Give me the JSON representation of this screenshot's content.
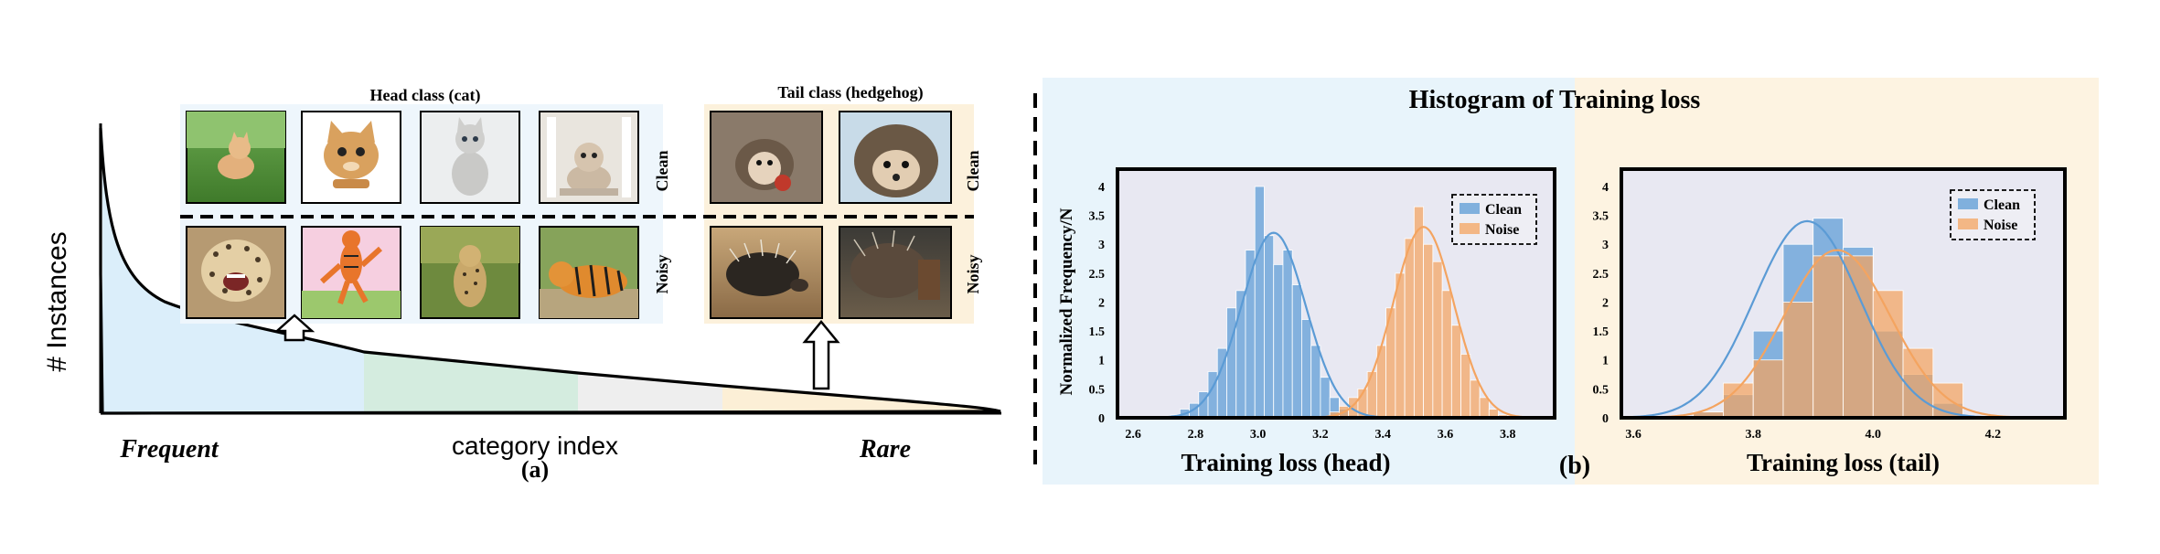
{
  "panel_a": {
    "y_axis_label": "# Instances",
    "x_axis_label": "category index",
    "left_label": "Frequent",
    "right_label": "Rare",
    "caption": "(a)",
    "head_title": "Head class (cat)",
    "tail_title": "Tail class (hedgehog)",
    "clean_label": "Clean",
    "noisy_label": "Noisy",
    "region_colors": [
      "#dbeefa",
      "#d4ecdf",
      "#eeeeee",
      "#fcefd6"
    ],
    "head_images": {
      "clean": [
        "kitten on grass",
        "cartoon cat",
        "grey kitten",
        "kitten at window"
      ],
      "noisy": [
        "snarling leopard",
        "cartoon tigger",
        "cheetah cub",
        "tiger"
      ]
    },
    "tail_images": {
      "clean": [
        "hedgehog with apple",
        "hedgehog face"
      ],
      "noisy": [
        "porcupine",
        "porcupine"
      ]
    }
  },
  "panel_b": {
    "title": "Histogram of Training loss",
    "caption": "(b)",
    "ylabel": "Normalized Frequency/N",
    "bg_colors": {
      "left": "#e8f4fb",
      "right": "#fdf3e1"
    },
    "series_colors": {
      "Clean": "#5b9bd5",
      "Noise": "#f4a460"
    }
  },
  "chart_data": [
    {
      "type": "bar",
      "title": "",
      "xlabel": "Training loss (head)",
      "ylabel": "Normalized Frequency/N",
      "xlim": [
        2.55,
        3.95
      ],
      "ylim": [
        0,
        4.3
      ],
      "xticks": [
        "2.6",
        "2.8",
        "3.0",
        "3.2",
        "3.4",
        "3.6",
        "3.8"
      ],
      "yticks": [
        "0",
        "0.5",
        "1",
        "1.5",
        "2",
        "2.5",
        "3",
        "3.5",
        "4"
      ],
      "legend": "top-right",
      "bin_width": 0.03,
      "series": [
        {
          "name": "Clean",
          "bins": [
            2.72,
            2.75,
            2.78,
            2.81,
            2.84,
            2.87,
            2.9,
            2.93,
            2.96,
            2.99,
            3.02,
            3.05,
            3.08,
            3.11,
            3.14,
            3.17,
            3.2,
            3.23,
            3.26,
            3.29
          ],
          "values": [
            0.05,
            0.15,
            0.25,
            0.45,
            0.8,
            1.2,
            1.9,
            2.2,
            2.9,
            4.0,
            3.15,
            2.65,
            2.9,
            2.3,
            1.7,
            1.25,
            0.7,
            0.35,
            0.15,
            0.05
          ],
          "curve_mean": 3.05,
          "curve_peak": 3.2
        },
        {
          "name": "Noise",
          "bins": [
            3.23,
            3.26,
            3.29,
            3.32,
            3.35,
            3.38,
            3.41,
            3.44,
            3.47,
            3.5,
            3.53,
            3.56,
            3.59,
            3.62,
            3.65,
            3.68,
            3.71,
            3.74,
            3.77
          ],
          "values": [
            0.1,
            0.2,
            0.35,
            0.5,
            0.8,
            1.25,
            1.9,
            2.5,
            3.1,
            3.65,
            3.0,
            2.7,
            2.2,
            1.6,
            1.1,
            0.65,
            0.35,
            0.15,
            0.05
          ],
          "curve_mean": 3.53,
          "curve_peak": 3.3
        }
      ]
    },
    {
      "type": "bar",
      "title": "",
      "xlabel": "Training loss (tail)",
      "ylabel": "",
      "xlim": [
        3.58,
        4.32
      ],
      "ylim": [
        0,
        4.3
      ],
      "xticks": [
        "3.6",
        "3.8",
        "4.0",
        "4.2"
      ],
      "yticks": [
        "0",
        "0.5",
        "1",
        "1.5",
        "2",
        "2.5",
        "3",
        "3.5",
        "4"
      ],
      "legend": "top-right",
      "bin_width": 0.05,
      "series": [
        {
          "name": "Clean",
          "bins": [
            3.7,
            3.75,
            3.8,
            3.85,
            3.9,
            3.95,
            4.0,
            4.05,
            4.1
          ],
          "values": [
            0.1,
            0.4,
            1.5,
            3.0,
            3.45,
            2.95,
            1.5,
            0.75,
            0.25
          ],
          "curve_mean": 3.89,
          "curve_peak": 3.4
        },
        {
          "name": "Noise",
          "bins": [
            3.7,
            3.75,
            3.8,
            3.85,
            3.9,
            3.95,
            4.0,
            4.05,
            4.1
          ],
          "values": [
            0.1,
            0.6,
            1.0,
            2.0,
            2.8,
            2.8,
            2.2,
            1.2,
            0.6
          ],
          "curve_mean": 3.94,
          "curve_peak": 2.9
        }
      ]
    }
  ]
}
